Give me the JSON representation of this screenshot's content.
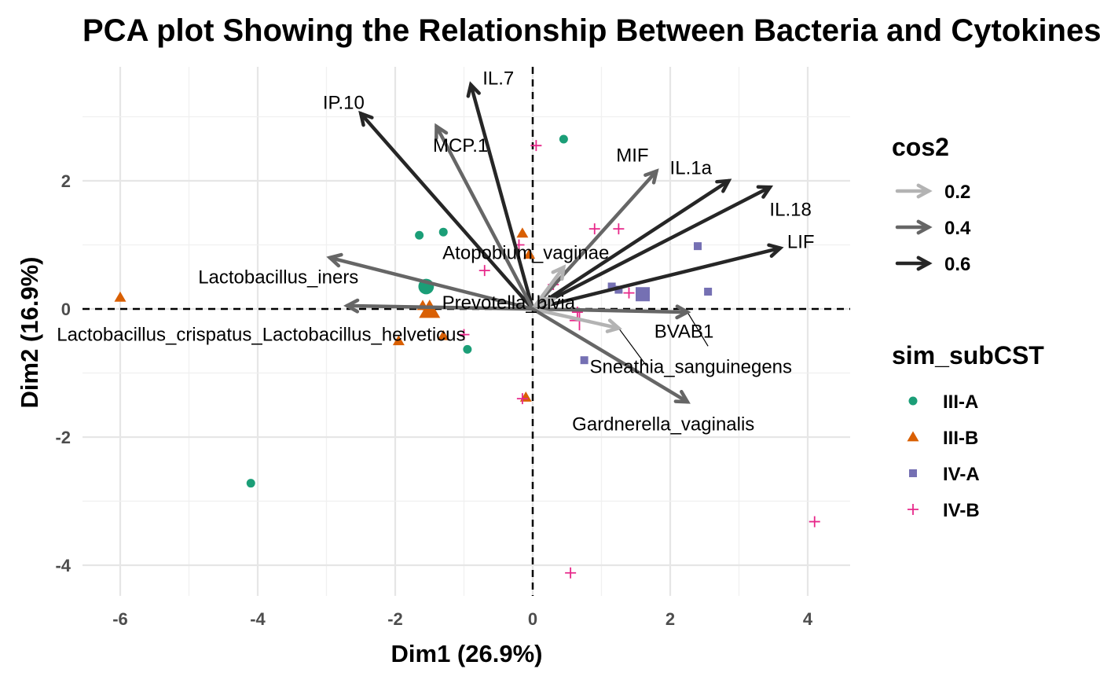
{
  "chart_data": {
    "type": "scatter",
    "title": "PCA plot Showing the Relationship Between Bacteria and Cytokines",
    "xlabel": "Dim1 (26.9%)",
    "ylabel": "Dim2 (16.9%)",
    "xlim": [
      -6.6,
      4.6
    ],
    "ylim": [
      -4.5,
      3.8
    ],
    "xticks": [
      -6,
      -4,
      -2,
      0,
      2,
      4
    ],
    "yticks": [
      -4,
      -2,
      0,
      2
    ],
    "xtick_labels": [
      "-6",
      "-4",
      "-2",
      "0",
      "2",
      "4"
    ],
    "ytick_labels": [
      "-4",
      "-2",
      "0",
      "2"
    ],
    "grid": true,
    "legend_placement": "right",
    "cos2_legend": {
      "title": "cos2",
      "entries": [
        {
          "label": "0.2",
          "value": 0.2,
          "color": "#b3b3b3"
        },
        {
          "label": "0.4",
          "value": 0.4,
          "color": "#666666"
        },
        {
          "label": "0.6",
          "value": 0.6,
          "color": "#262626"
        }
      ]
    },
    "group_legend": {
      "title": "sim_subCST",
      "entries": [
        {
          "label": "III-A",
          "shape": "circle",
          "color": "#1b9e77"
        },
        {
          "label": "III-B",
          "shape": "triangle",
          "color": "#d95f02"
        },
        {
          "label": "IV-A",
          "shape": "square",
          "color": "#7570b3"
        },
        {
          "label": "IV-B",
          "shape": "plus",
          "color": "#e7298a"
        }
      ]
    },
    "variables": [
      {
        "name": "IL.7",
        "x": -0.9,
        "y": 3.5,
        "cos2": 0.6,
        "label_x": -0.5,
        "label_y": 3.6
      },
      {
        "name": "IP.10",
        "x": -2.5,
        "y": 3.05,
        "cos2": 0.65,
        "label_x": -2.75,
        "label_y": 3.22
      },
      {
        "name": "MCP.1",
        "x": -1.4,
        "y": 2.85,
        "cos2": 0.45,
        "label_x": -1.05,
        "label_y": 2.55
      },
      {
        "name": "MIF",
        "x": 1.8,
        "y": 2.15,
        "cos2": 0.4,
        "label_x": 1.45,
        "label_y": 2.4
      },
      {
        "name": "IL.1a",
        "x": 2.85,
        "y": 2.0,
        "cos2": 0.6,
        "label_x": 2.3,
        "label_y": 2.2
      },
      {
        "name": "IL.18",
        "x": 3.45,
        "y": 1.9,
        "cos2": 0.65,
        "label_x": 3.75,
        "label_y": 1.55
      },
      {
        "name": "LIF",
        "x": 3.6,
        "y": 0.95,
        "cos2": 0.65,
        "label_x": 3.9,
        "label_y": 1.05
      },
      {
        "name": "Atopobium_vaginae",
        "x": 0.45,
        "y": 0.65,
        "cos2": 0.15,
        "label_x": -0.1,
        "label_y": 0.88
      },
      {
        "name": "Lactobacillus_iners",
        "x": -2.95,
        "y": 0.8,
        "cos2": 0.45,
        "label_x": -3.7,
        "label_y": 0.5
      },
      {
        "name": "Prevotella_bivia",
        "x": 0.3,
        "y": 0.15,
        "cos2": 0.1,
        "label_x": -0.35,
        "label_y": 0.1
      },
      {
        "name": "Lactobacillus_crispatus_Lactobacillus_helveticus",
        "x": -2.7,
        "y": 0.05,
        "cos2": 0.4,
        "label_x": -3.95,
        "label_y": -0.4
      },
      {
        "name": "BVAB1",
        "x": 2.25,
        "y": -0.05,
        "cos2": 0.3,
        "label_x": 2.2,
        "label_y": -0.35
      },
      {
        "name": "Sneathia_sanguinegens",
        "x": 1.25,
        "y": -0.3,
        "cos2": 0.1,
        "label_x": 2.3,
        "label_y": -0.9
      },
      {
        "name": "Gardnerella_vaginalis",
        "x": 2.25,
        "y": -1.45,
        "cos2": 0.35,
        "label_x": 1.9,
        "label_y": -1.8
      }
    ],
    "label_leaders": [
      {
        "name": "BVAB1",
        "from": [
          2.25,
          -0.05
        ],
        "to": [
          2.55,
          -0.58
        ]
      },
      {
        "name": "Sneathia_sanguinegens",
        "from": [
          1.25,
          -0.3
        ],
        "to": [
          1.65,
          -0.88
        ]
      }
    ],
    "points": [
      {
        "group": "III-A",
        "x": 0.45,
        "y": 2.65
      },
      {
        "group": "III-A",
        "x": -1.65,
        "y": 1.15
      },
      {
        "group": "III-A",
        "x": -1.3,
        "y": 1.2
      },
      {
        "group": "III-A",
        "x": -4.1,
        "y": -2.72
      },
      {
        "group": "III-A",
        "x": -0.95,
        "y": -0.63
      },
      {
        "group": "III-A",
        "x": -1.55,
        "y": 0.35,
        "centroid": true
      },
      {
        "group": "III-B",
        "x": -6.0,
        "y": 0.18
      },
      {
        "group": "III-B",
        "x": -0.15,
        "y": 1.18
      },
      {
        "group": "III-B",
        "x": -0.05,
        "y": 0.85
      },
      {
        "group": "III-B",
        "x": -1.95,
        "y": -0.5
      },
      {
        "group": "III-B",
        "x": -1.3,
        "y": -0.42
      },
      {
        "group": "III-B",
        "x": -0.1,
        "y": -1.38
      },
      {
        "group": "III-B",
        "x": -1.6,
        "y": 0.05
      },
      {
        "group": "III-B",
        "x": -1.5,
        "y": -0.02,
        "centroid": true
      },
      {
        "group": "IV-A",
        "x": 2.4,
        "y": 0.98
      },
      {
        "group": "IV-A",
        "x": 2.55,
        "y": 0.27
      },
      {
        "group": "IV-A",
        "x": 1.15,
        "y": 0.35
      },
      {
        "group": "IV-A",
        "x": 1.25,
        "y": 0.3
      },
      {
        "group": "IV-A",
        "x": 0.75,
        "y": -0.8
      },
      {
        "group": "IV-A",
        "x": 1.6,
        "y": 0.23,
        "centroid": true
      },
      {
        "group": "IV-B",
        "x": 0.05,
        "y": 2.55
      },
      {
        "group": "IV-B",
        "x": 0.9,
        "y": 1.25
      },
      {
        "group": "IV-B",
        "x": 1.25,
        "y": 1.25
      },
      {
        "group": "IV-B",
        "x": -0.7,
        "y": 0.6
      },
      {
        "group": "IV-B",
        "x": 0.3,
        "y": 0.38
      },
      {
        "group": "IV-B",
        "x": 1.4,
        "y": 0.25
      },
      {
        "group": "IV-B",
        "x": 0.65,
        "y": -0.05
      },
      {
        "group": "IV-B",
        "x": -1.0,
        "y": -0.4
      },
      {
        "group": "IV-B",
        "x": -0.15,
        "y": -1.4
      },
      {
        "group": "IV-B",
        "x": 4.1,
        "y": -3.32
      },
      {
        "group": "IV-B",
        "x": 0.55,
        "y": -4.12
      },
      {
        "group": "IV-B",
        "x": -0.2,
        "y": 1.0
      },
      {
        "group": "IV-B",
        "x": 0.68,
        "y": -0.18,
        "centroid": true
      }
    ]
  }
}
